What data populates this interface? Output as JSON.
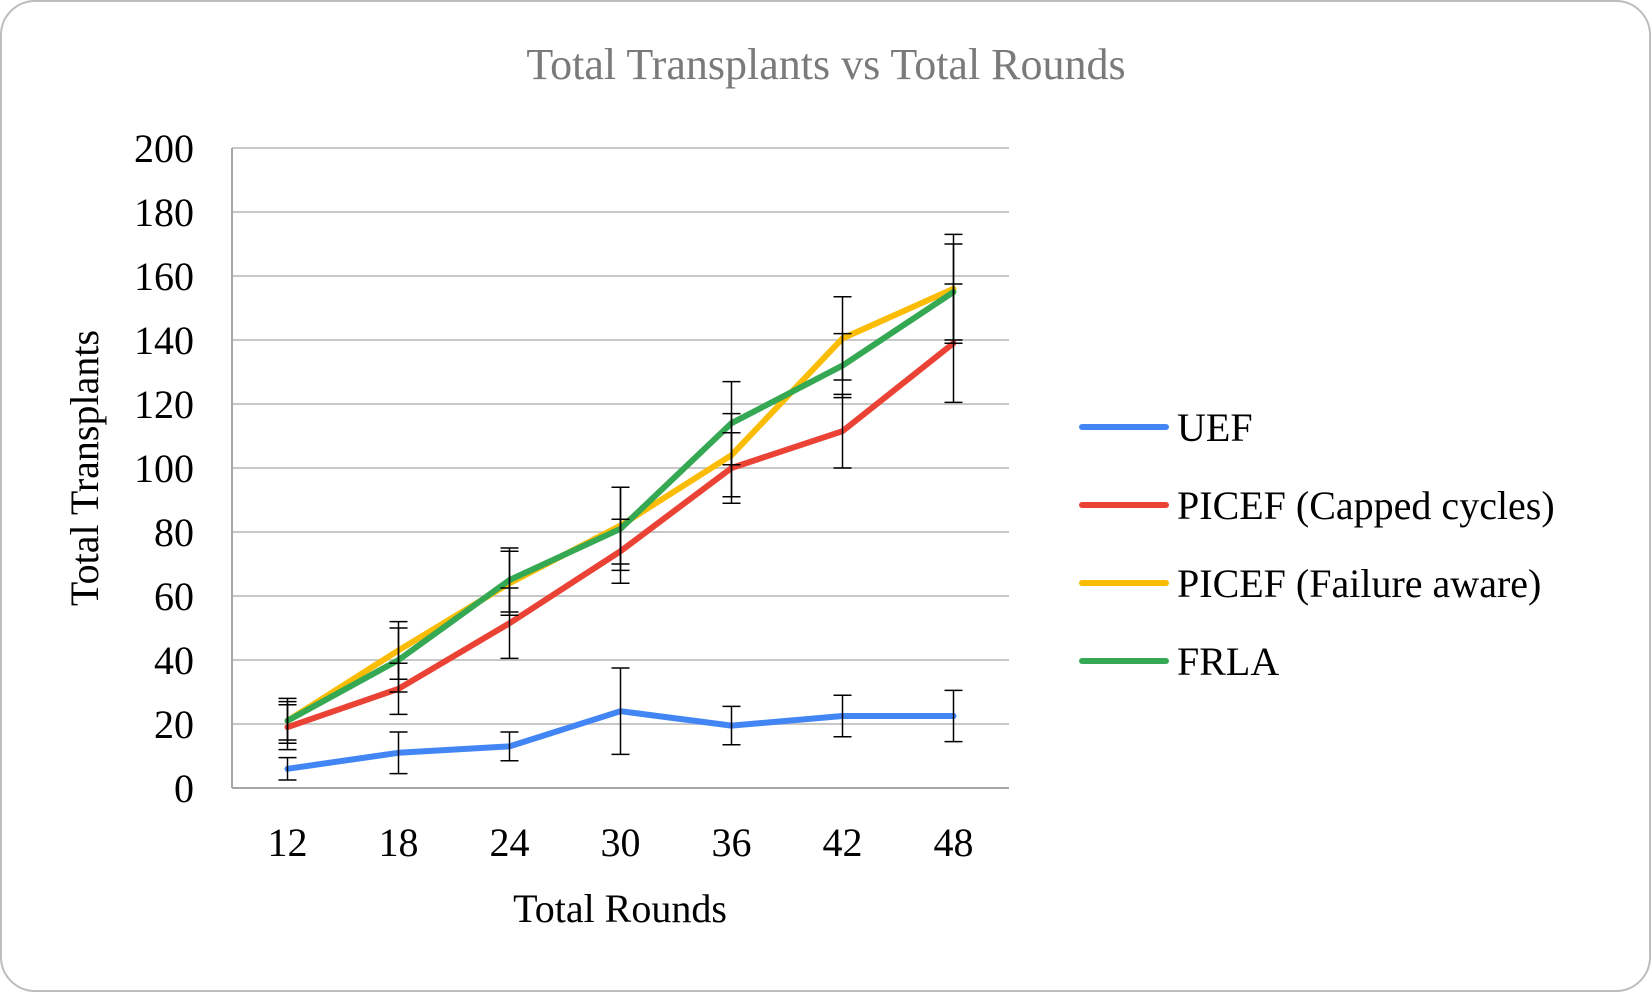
{
  "chart_data": {
    "type": "line",
    "title": "Total Transplants vs Total Rounds",
    "xlabel": "Total Rounds",
    "ylabel": "Total Transplants",
    "categories": [
      "12",
      "18",
      "24",
      "30",
      "36",
      "42",
      "48"
    ],
    "ylim": [
      0,
      200
    ],
    "yticks": [
      "0",
      "20",
      "40",
      "60",
      "80",
      "100",
      "120",
      "140",
      "160",
      "180",
      "200"
    ],
    "grid": true,
    "legend_position": "right",
    "error_bars": true,
    "series": [
      {
        "name": "UEF",
        "color": "#4285F4",
        "values": [
          6,
          11,
          13,
          24,
          19.5,
          22.5,
          22.5
        ],
        "errors": [
          3.5,
          6.5,
          4.5,
          13.5,
          6,
          6.5,
          8
        ]
      },
      {
        "name": "PICEF (Capped cycles)",
        "color": "#EA4335",
        "values": [
          19,
          31,
          51.5,
          74,
          100,
          111.5,
          139
        ],
        "errors": [
          7,
          8,
          11,
          10,
          11,
          11.5,
          18.5
        ]
      },
      {
        "name": "PICEF (Failure aware)",
        "color": "#FBBC05",
        "values": [
          21,
          43,
          64,
          82,
          104,
          140.5,
          156
        ],
        "errors": [
          7,
          9,
          10,
          12,
          13,
          13,
          17
        ]
      },
      {
        "name": "FRLA",
        "color": "#34A853",
        "values": [
          21,
          40,
          65,
          81,
          114,
          132,
          155
        ],
        "errors": [
          6,
          10,
          10,
          13,
          13,
          10,
          15
        ]
      }
    ]
  }
}
